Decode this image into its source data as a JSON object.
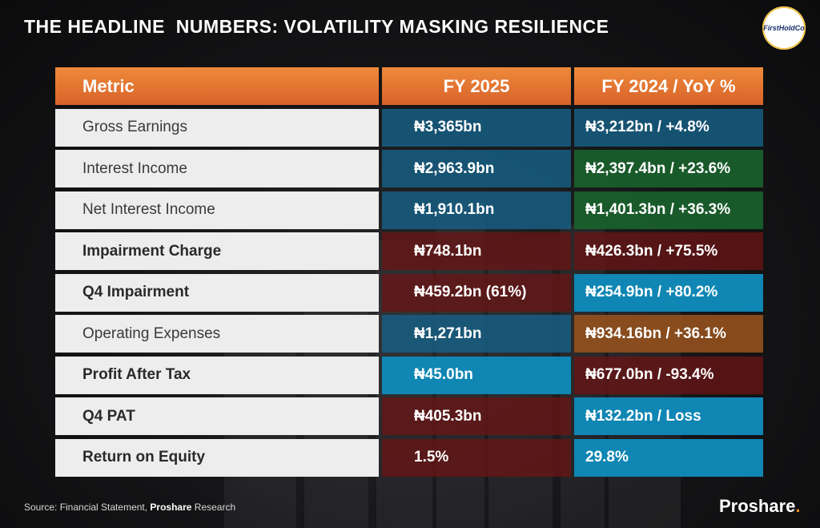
{
  "title": "THE HEADLINE  NUMBERS: VOLATILITY MASKING RESILIENCE",
  "logo_text": "FirstHoldCo",
  "headers": {
    "metric": "Metric",
    "fy2025": "FY 2025",
    "fy2024": "FY 2024 / YoY %"
  },
  "rows": [
    {
      "metric": "Gross Earnings",
      "fy2025": "₦3,365bn",
      "fy2024": "₦3,212bn / +4.8%"
    },
    {
      "metric": "Interest Income",
      "fy2025": "₦2,963.9bn",
      "fy2024": "₦2,397.4bn / +23.6%"
    },
    {
      "metric": "Net Interest Income",
      "fy2025": "₦1,910.1bn",
      "fy2024": "₦1,401.3bn / +36.3%"
    },
    {
      "metric": "Impairment Charge",
      "fy2025": "₦748.1bn",
      "fy2024": "₦426.3bn / +75.5%"
    },
    {
      "metric": "Q4 Impairment",
      "fy2025": "₦459.2bn (61%)",
      "fy2024": "₦254.9bn / +80.2%"
    },
    {
      "metric": "Operating Expenses",
      "fy2025": "₦1,271bn",
      "fy2024": "₦934.16bn / +36.1%"
    },
    {
      "metric": "Profit After Tax",
      "fy2025": "₦45.0bn",
      "fy2024": "₦677.0bn / -93.4%"
    },
    {
      "metric": "Q4 PAT",
      "fy2025": "₦405.3bn",
      "fy2024": "₦132.2bn / Loss"
    },
    {
      "metric": "Return on Equity",
      "fy2025": "1.5%",
      "fy2024": "29.8%"
    }
  ],
  "source": {
    "prefix": "Source: Financial Statement, ",
    "bold": "Proshare",
    "suffix": " Research"
  },
  "brand": {
    "name": "Proshare",
    "dot": "."
  },
  "colors": {
    "header": "#e8773a",
    "blue": "#165e82",
    "bright_blue": "#0f86b3",
    "green": "#1a642d",
    "red": "#681414",
    "brown": "#96521c"
  }
}
